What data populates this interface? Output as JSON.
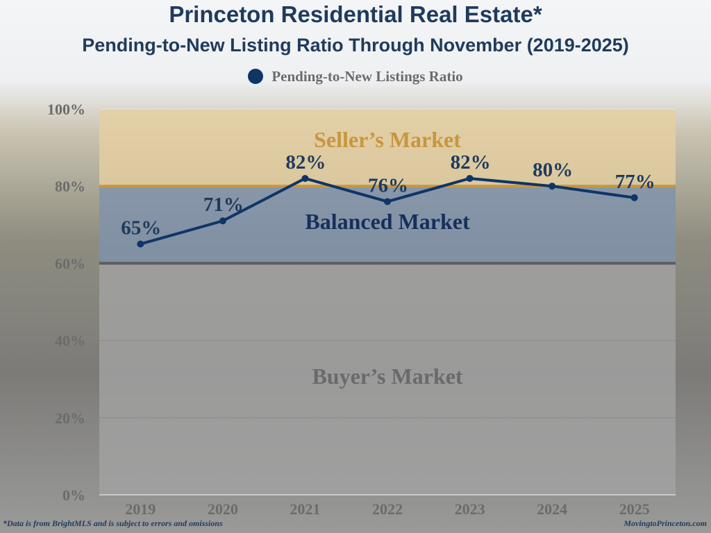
{
  "chart_data": {
    "type": "line",
    "title": "Princeton Residential Real Estate*",
    "subtitle": "Pending-to-New Listing Ratio Through November (2019-2025)",
    "categories": [
      "2019",
      "2020",
      "2021",
      "2022",
      "2023",
      "2024",
      "2025"
    ],
    "series": [
      {
        "name": "Pending-to-New Listings Ratio",
        "values": [
          65,
          71,
          82,
          76,
          82,
          80,
          77
        ],
        "color": "#0e3566"
      }
    ],
    "data_labels": [
      "65%",
      "71%",
      "82%",
      "76%",
      "82%",
      "80%",
      "77%"
    ],
    "ylim": [
      0,
      100
    ],
    "yticks": [
      "0%",
      "20%",
      "40%",
      "60%",
      "80%",
      "100%"
    ],
    "legend": "top",
    "grid": true,
    "bands": [
      {
        "label": "Seller's Market",
        "from": 80,
        "to": 100,
        "color": "#e6cfa0",
        "text_color": "#c8963f"
      },
      {
        "label": "Balanced Market",
        "from": 60,
        "to": 80,
        "color": "#7e92ad",
        "text_color": "#15305a"
      },
      {
        "label": "Buyer's Market",
        "from": 0,
        "to": 60,
        "color": "#a3a3a3",
        "text_color": "#6a6a6a"
      }
    ],
    "band_labels": [
      "Seller’s Market",
      "Balanced Market",
      "Buyer’s Market"
    ]
  },
  "footer": {
    "note": "*Data is from BrightMLS and is subject to errors and omissions",
    "site": "MovingtoPrinceton.com"
  }
}
